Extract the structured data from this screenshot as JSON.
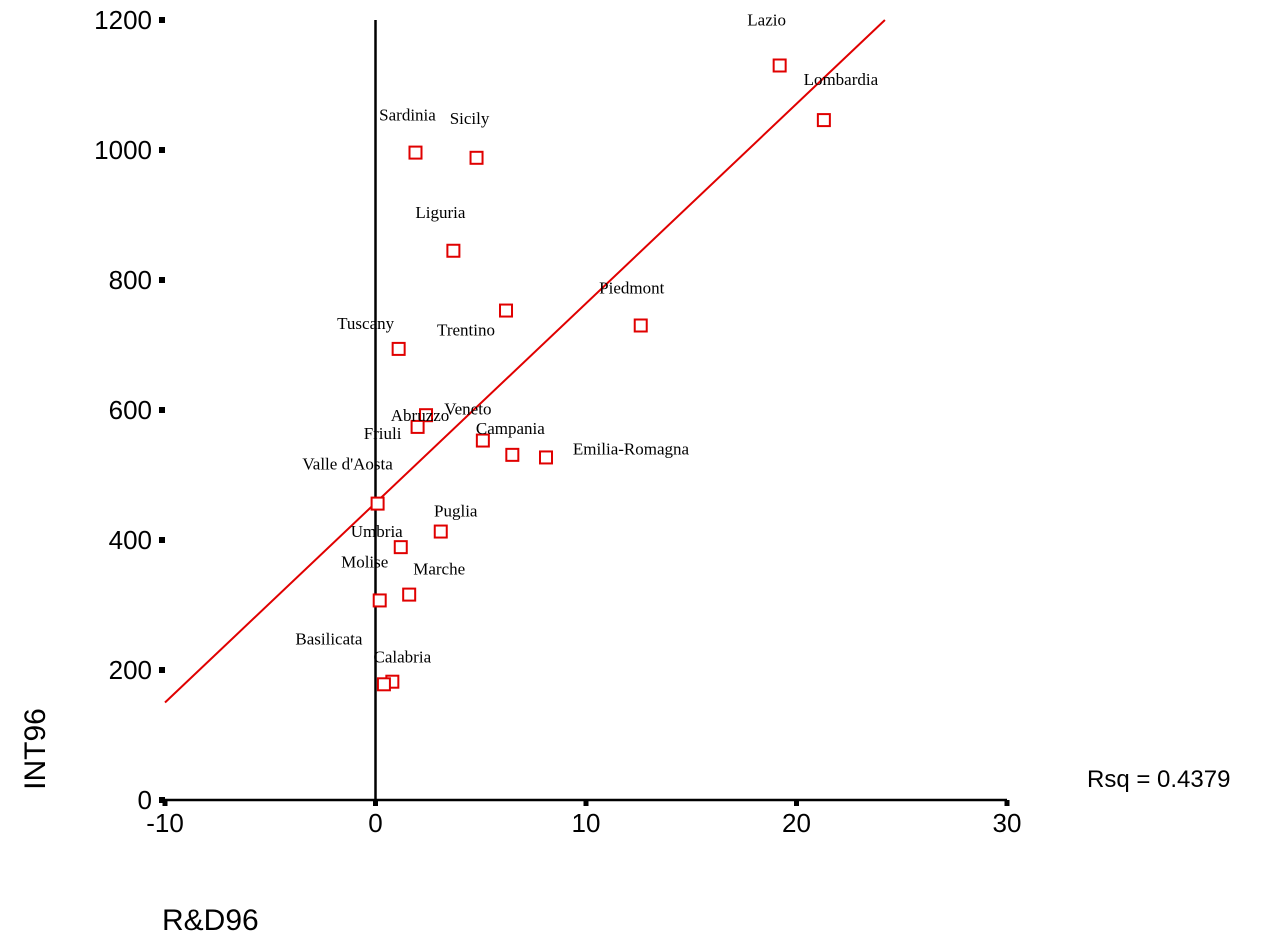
{
  "chart_data": {
    "type": "scatter",
    "xlabel": "R&D96",
    "ylabel": "INT96",
    "xlim": [
      -10,
      30
    ],
    "ylim": [
      0,
      1200
    ],
    "x_ticks": [
      -10,
      0,
      10,
      20,
      30
    ],
    "y_ticks": [
      0,
      200,
      400,
      600,
      800,
      1000,
      1200
    ],
    "grid": false,
    "fit_line": {
      "x1": -10,
      "y1": 150,
      "x2": 24.2,
      "y2": 1200
    },
    "rsq_text": "Rsq = 0.4379",
    "marker_color": "#e00000",
    "line_color": "#e00000",
    "points": [
      {
        "x": 19.2,
        "y": 1130,
        "label": "Lazio"
      },
      {
        "x": 21.3,
        "y": 1046,
        "label": "Lombardia"
      },
      {
        "x": 1.9,
        "y": 996,
        "label": "Sardinia"
      },
      {
        "x": 4.8,
        "y": 988,
        "label": "Sicily"
      },
      {
        "x": 3.7,
        "y": 845,
        "label": "Liguria"
      },
      {
        "x": 6.2,
        "y": 753,
        "label": "Trentino"
      },
      {
        "x": 12.6,
        "y": 730,
        "label": "Piedmont"
      },
      {
        "x": 1.1,
        "y": 694,
        "label": "Tuscany"
      },
      {
        "x": 2.4,
        "y": 592,
        "label": "Abruzzo"
      },
      {
        "x": 2.0,
        "y": 574,
        "label": "Friuli"
      },
      {
        "x": 5.1,
        "y": 553,
        "label": "Veneto"
      },
      {
        "x": 6.5,
        "y": 531,
        "label": "Campania"
      },
      {
        "x": 8.1,
        "y": 527,
        "label": "Emilia-Romagna"
      },
      {
        "x": 0.1,
        "y": 456,
        "label": "Valle d'Aosta"
      },
      {
        "x": 3.1,
        "y": 413,
        "label": "Puglia"
      },
      {
        "x": 1.2,
        "y": 389,
        "label": "Umbria"
      },
      {
        "x": 1.6,
        "y": 316,
        "label": "Marche"
      },
      {
        "x": 0.2,
        "y": 307,
        "label": "Molise"
      },
      {
        "x": 0.8,
        "y": 182,
        "label": "Calabria"
      },
      {
        "x": 0.4,
        "y": 178,
        "label": "Basilicata"
      }
    ]
  }
}
